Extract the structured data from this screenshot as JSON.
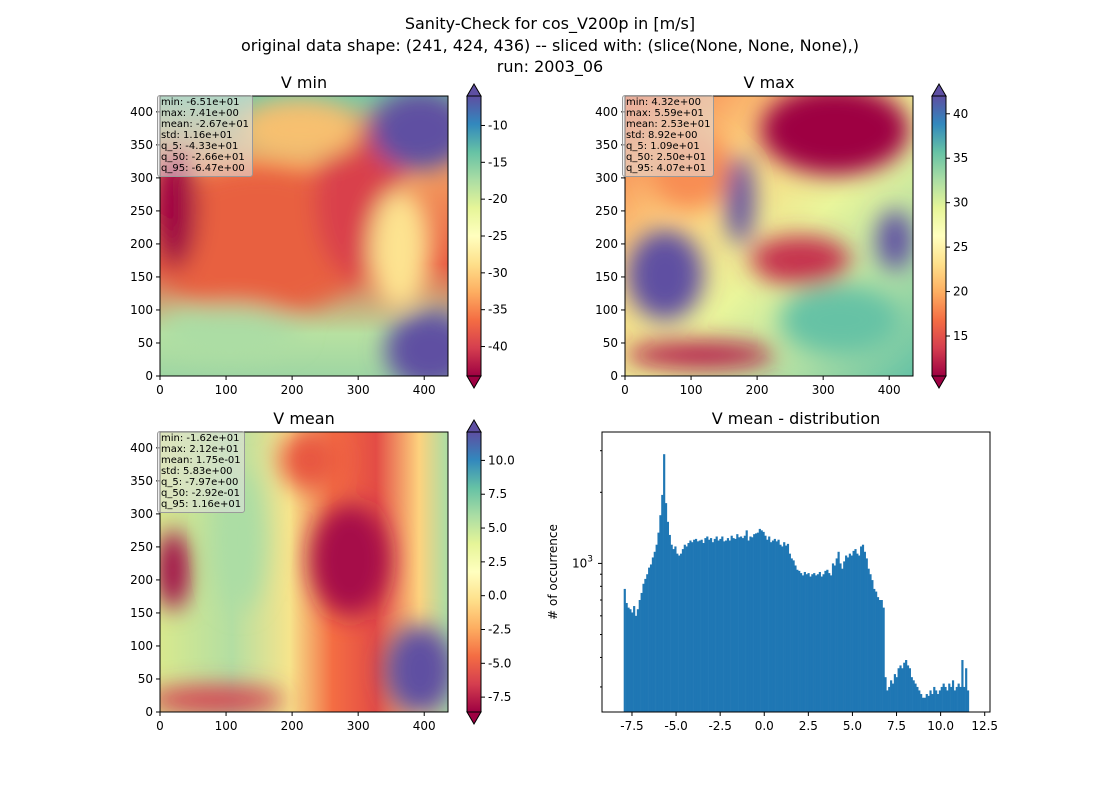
{
  "suptitle": {
    "line1": "Sanity-Check for cos_V200p in [m/s]",
    "line2": "original data shape: (241, 424, 436) -- sliced with: (slice(None, None, None),)",
    "line3": "run: 2003_06"
  },
  "chart_data": [
    {
      "type": "heatmap",
      "title": "V min",
      "xlim": [
        0,
        436
      ],
      "ylim": [
        0,
        424
      ],
      "xticks": [
        0,
        100,
        200,
        300,
        400
      ],
      "yticks": [
        0,
        50,
        100,
        150,
        200,
        250,
        300,
        350,
        400
      ],
      "colormap": "Spectral",
      "colorbar": {
        "range": [
          -44,
          -6
        ],
        "ticks": [
          -10,
          -15,
          -20,
          -25,
          -30,
          -35,
          -40
        ],
        "extend": "both"
      },
      "stats": [
        "min: -6.51e+01",
        "max: 7.41e+00",
        "mean: -2.67e+01",
        "std: 1.16e+01",
        "q_5: -4.33e+01",
        "q_50: -2.66e+01",
        "q_95: -6.47e+00"
      ]
    },
    {
      "type": "heatmap",
      "title": "V max",
      "xlim": [
        0,
        436
      ],
      "ylim": [
        0,
        424
      ],
      "xticks": [
        0,
        100,
        200,
        300,
        400
      ],
      "yticks": [
        0,
        50,
        100,
        150,
        200,
        250,
        300,
        350,
        400
      ],
      "colormap": "Spectral",
      "colorbar": {
        "range": [
          10.5,
          42
        ],
        "ticks": [
          15,
          20,
          25,
          30,
          35,
          40
        ],
        "extend": "both"
      },
      "stats": [
        "min: 4.32e+00",
        "max: 5.59e+01",
        "mean: 2.53e+01",
        "std: 8.92e+00",
        "q_5: 1.09e+01",
        "q_50: 2.50e+01",
        "q_95: 4.07e+01"
      ]
    },
    {
      "type": "heatmap",
      "title": "V mean",
      "xlim": [
        0,
        436
      ],
      "ylim": [
        0,
        424
      ],
      "xticks": [
        0,
        100,
        200,
        300,
        400
      ],
      "yticks": [
        0,
        50,
        100,
        150,
        200,
        250,
        300,
        350,
        400
      ],
      "colormap": "Spectral",
      "colorbar": {
        "range": [
          -8.6,
          12.1
        ],
        "ticks": [
          10.0,
          7.5,
          5.0,
          2.5,
          0.0,
          -2.5,
          -5.0,
          -7.5
        ],
        "extend": "both"
      },
      "stats": [
        "min: -1.62e+01",
        "max: 2.12e+01",
        "mean: 1.75e-01",
        "std: 5.83e+00",
        "q_5: -7.97e+00",
        "q_50: -2.92e-01",
        "q_95: 1.16e+01"
      ]
    },
    {
      "type": "bar",
      "title": "V mean - distribution",
      "ylabel": "# of occurrence",
      "yscale": "log",
      "xlim": [
        -9.2,
        12.8
      ],
      "ylim": [
        235,
        3600
      ],
      "xticks": [
        -7.5,
        -5.0,
        -2.5,
        0.0,
        2.5,
        5.0,
        7.5,
        10.0,
        12.5
      ],
      "yticks_major": [
        1000
      ],
      "ytick_label": "10",
      "ytick_exp": "3",
      "color": "#1f77b4",
      "bin_range": [
        -7.97,
        11.6
      ],
      "values": [
        780,
        680,
        650,
        640,
        620,
        660,
        600,
        640,
        700,
        750,
        820,
        860,
        900,
        960,
        990,
        1060,
        1120,
        1200,
        1350,
        1600,
        1950,
        2900,
        1800,
        1500,
        1320,
        1200,
        1150,
        1180,
        1100,
        1080,
        1100,
        1150,
        1200,
        1180,
        1220,
        1250,
        1230,
        1260,
        1270,
        1240,
        1250,
        1260,
        1220,
        1280,
        1300,
        1260,
        1280,
        1230,
        1270,
        1300,
        1250,
        1270,
        1300,
        1240,
        1250,
        1280,
        1250,
        1310,
        1280,
        1270,
        1330,
        1290,
        1300,
        1280,
        1310,
        1380,
        1250,
        1300,
        1290,
        1330,
        1340,
        1350,
        1400,
        1380,
        1360,
        1310,
        1260,
        1300,
        1230,
        1250,
        1270,
        1240,
        1260,
        1200,
        1180,
        1230,
        1190,
        1210,
        1100,
        1050,
        1030,
        980,
        940,
        930,
        910,
        890,
        920,
        900,
        910,
        880,
        900,
        910,
        890,
        900,
        920,
        880,
        900,
        930,
        940,
        910,
        890,
        1000,
        980,
        1050,
        1120,
        1000,
        950,
        1020,
        1080,
        1060,
        1100,
        1080,
        1130,
        1150,
        1100,
        1080,
        1180,
        1200,
        1120,
        1050,
        950,
        900,
        850,
        780,
        760,
        720,
        700,
        700,
        650,
        330,
        290,
        300,
        320,
        310,
        340,
        330,
        360,
        370,
        360,
        380,
        390,
        370,
        360,
        330,
        320,
        310,
        300,
        290,
        280,
        270,
        270,
        280,
        275,
        290,
        280,
        300,
        290,
        280,
        290,
        300,
        310,
        300,
        290,
        310,
        300,
        320,
        290,
        300,
        310,
        300,
        390,
        300,
        360,
        290
      ]
    }
  ]
}
